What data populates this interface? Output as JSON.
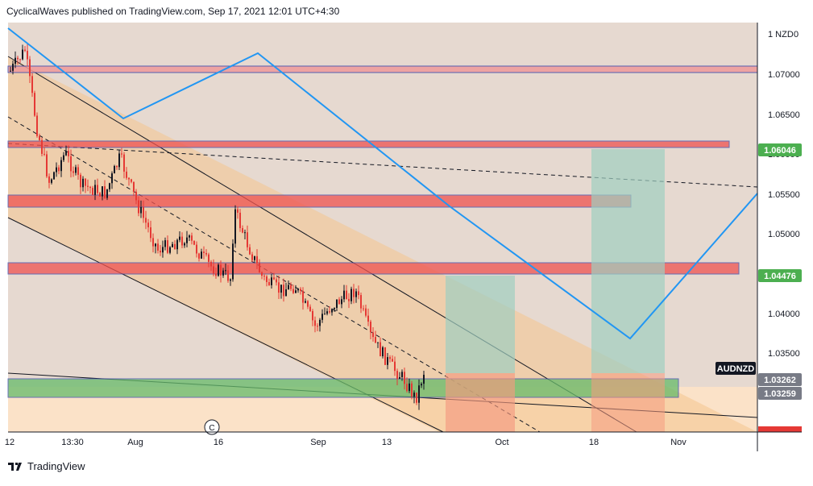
{
  "header": {
    "published_by": "CyclicalWaves published on TradingView.com, Sep 17, 2021 12:01 UTC+4:30"
  },
  "footer": {
    "brand": "TradingView",
    "logo_icon": "tradingview-logo-icon"
  },
  "chart_data": {
    "type": "candlestick",
    "symbol": "AUDNZD",
    "currency_label": "1 NZD",
    "currency_value": "0",
    "y_ticks": [
      "1.07000",
      "1.06500",
      "1.06000",
      "1.05500",
      "1.05000",
      "1.04500",
      "1.04000",
      "1.03500"
    ],
    "x_ticks": [
      "12",
      "13:30",
      "Aug",
      "16",
      "Sep",
      "13",
      "Oct",
      "18",
      "Nov"
    ],
    "price_badges": [
      {
        "value": "1.06046",
        "color": "#4caf50"
      },
      {
        "value": "1.04476",
        "color": "#4caf50"
      },
      {
        "value": "AUDNZD",
        "color": "#131722"
      },
      {
        "value": "1.03262",
        "color": "#787b86"
      },
      {
        "value": "1.03259",
        "color": "#787b86"
      }
    ],
    "last_price": 1.0326,
    "colors": {
      "bull": "#131722",
      "bear": "#e53935",
      "zigzag": "#2196f3",
      "channel_fill": "#f7c98e",
      "zone_red": "#ef5350",
      "zone_green": "#66bb6a"
    },
    "candles_summary": {
      "start": 1.0705,
      "end": 1.0326,
      "low": 1.031,
      "high": 1.0715
    },
    "horizontal_zones": [
      {
        "top": 1.071,
        "bottom": 1.0702,
        "type": "resistance"
      },
      {
        "top": 1.0615,
        "bottom": 1.0607,
        "type": "resistance"
      },
      {
        "top": 1.0548,
        "bottom": 1.0535,
        "type": "resistance"
      },
      {
        "top": 1.0465,
        "bottom": 1.0452,
        "type": "resistance"
      },
      {
        "top": 1.0327,
        "bottom": 1.0305,
        "type": "support"
      }
    ],
    "projection_boxes": [
      {
        "target": 1.0448,
        "stop": 1.0288
      },
      {
        "target": 1.0605,
        "stop": 1.0288
      }
    ]
  }
}
